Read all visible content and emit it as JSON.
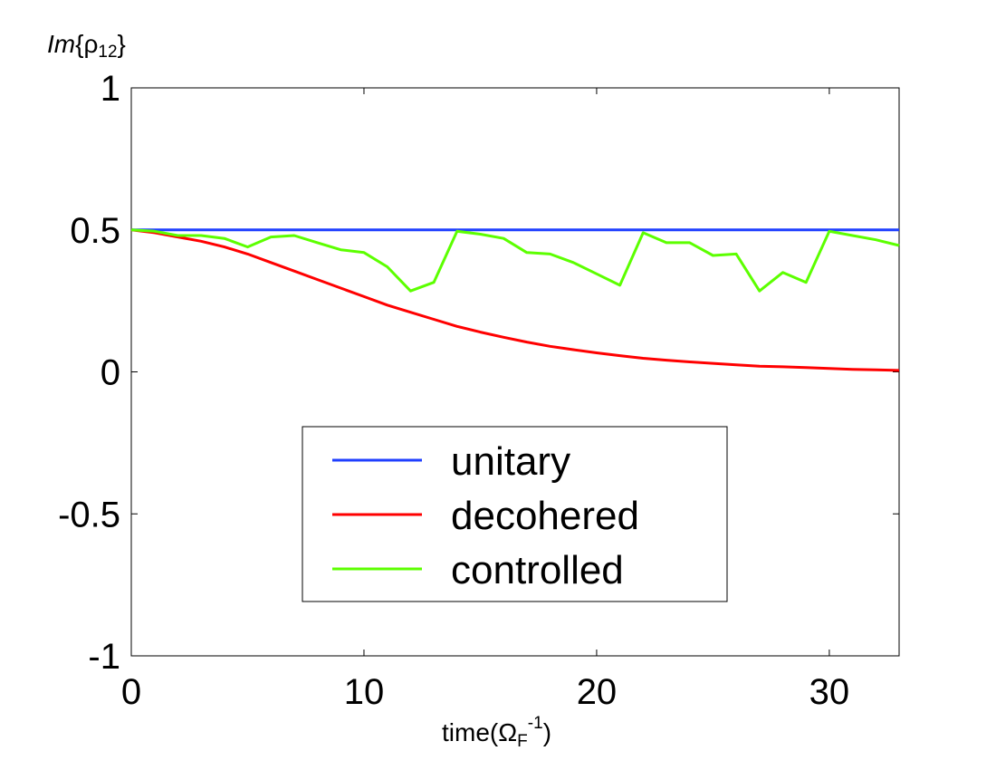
{
  "chart_data": {
    "type": "line",
    "ylabel": {
      "prefix": "Im",
      "brace_open": "{",
      "symbol": "ρ",
      "subscript": "12",
      "brace_close": "}"
    },
    "xlabel": {
      "prefix": "time(",
      "symbol": "Ω",
      "subscript": "F",
      "superscript": "-1",
      "suffix": ")"
    },
    "xlim": [
      0,
      33
    ],
    "ylim": [
      -1,
      1
    ],
    "xticks": [
      0,
      10,
      20,
      30
    ],
    "xtick_labels": [
      "0",
      "10",
      "20",
      "30"
    ],
    "yticks": [
      1,
      0.5,
      0,
      -0.5,
      -1
    ],
    "ytick_labels": [
      "1",
      "0.5",
      "0",
      "-0.5",
      "-1"
    ],
    "grid": false,
    "legend_position": "lower-center",
    "series": [
      {
        "name": "unitary",
        "color": "#1f3fff",
        "x": [
          0,
          33
        ],
        "y": [
          0.5,
          0.5
        ]
      },
      {
        "name": "decohered",
        "color": "#ff0000",
        "x": [
          0,
          1,
          2,
          3,
          4,
          5,
          6,
          7,
          8,
          9,
          10,
          11,
          12,
          13,
          14,
          15,
          16,
          17,
          18,
          19,
          20,
          21,
          22,
          23,
          24,
          25,
          26,
          27,
          28,
          29,
          30,
          31,
          32,
          33
        ],
        "y": [
          0.5,
          0.49,
          0.475,
          0.46,
          0.44,
          0.415,
          0.385,
          0.355,
          0.325,
          0.295,
          0.265,
          0.235,
          0.21,
          0.185,
          0.16,
          0.14,
          0.122,
          0.105,
          0.09,
          0.078,
          0.067,
          0.057,
          0.048,
          0.041,
          0.035,
          0.03,
          0.025,
          0.02,
          0.018,
          0.015,
          0.012,
          0.009,
          0.007,
          0.005
        ]
      },
      {
        "name": "controlled",
        "color": "#5cff00",
        "x": [
          0,
          1,
          2,
          3,
          4,
          5,
          6,
          7,
          8,
          9,
          10,
          11,
          12,
          13,
          14,
          15,
          16,
          17,
          18,
          19,
          20,
          21,
          22,
          23,
          24,
          25,
          26,
          27,
          28,
          29,
          30,
          31,
          32,
          33
        ],
        "y": [
          0.5,
          0.495,
          0.48,
          0.48,
          0.47,
          0.44,
          0.475,
          0.48,
          0.455,
          0.43,
          0.42,
          0.37,
          0.285,
          0.315,
          0.495,
          0.485,
          0.47,
          0.42,
          0.415,
          0.385,
          0.345,
          0.305,
          0.49,
          0.455,
          0.455,
          0.41,
          0.415,
          0.285,
          0.35,
          0.315,
          0.495,
          0.48,
          0.465,
          0.445
        ]
      }
    ]
  }
}
